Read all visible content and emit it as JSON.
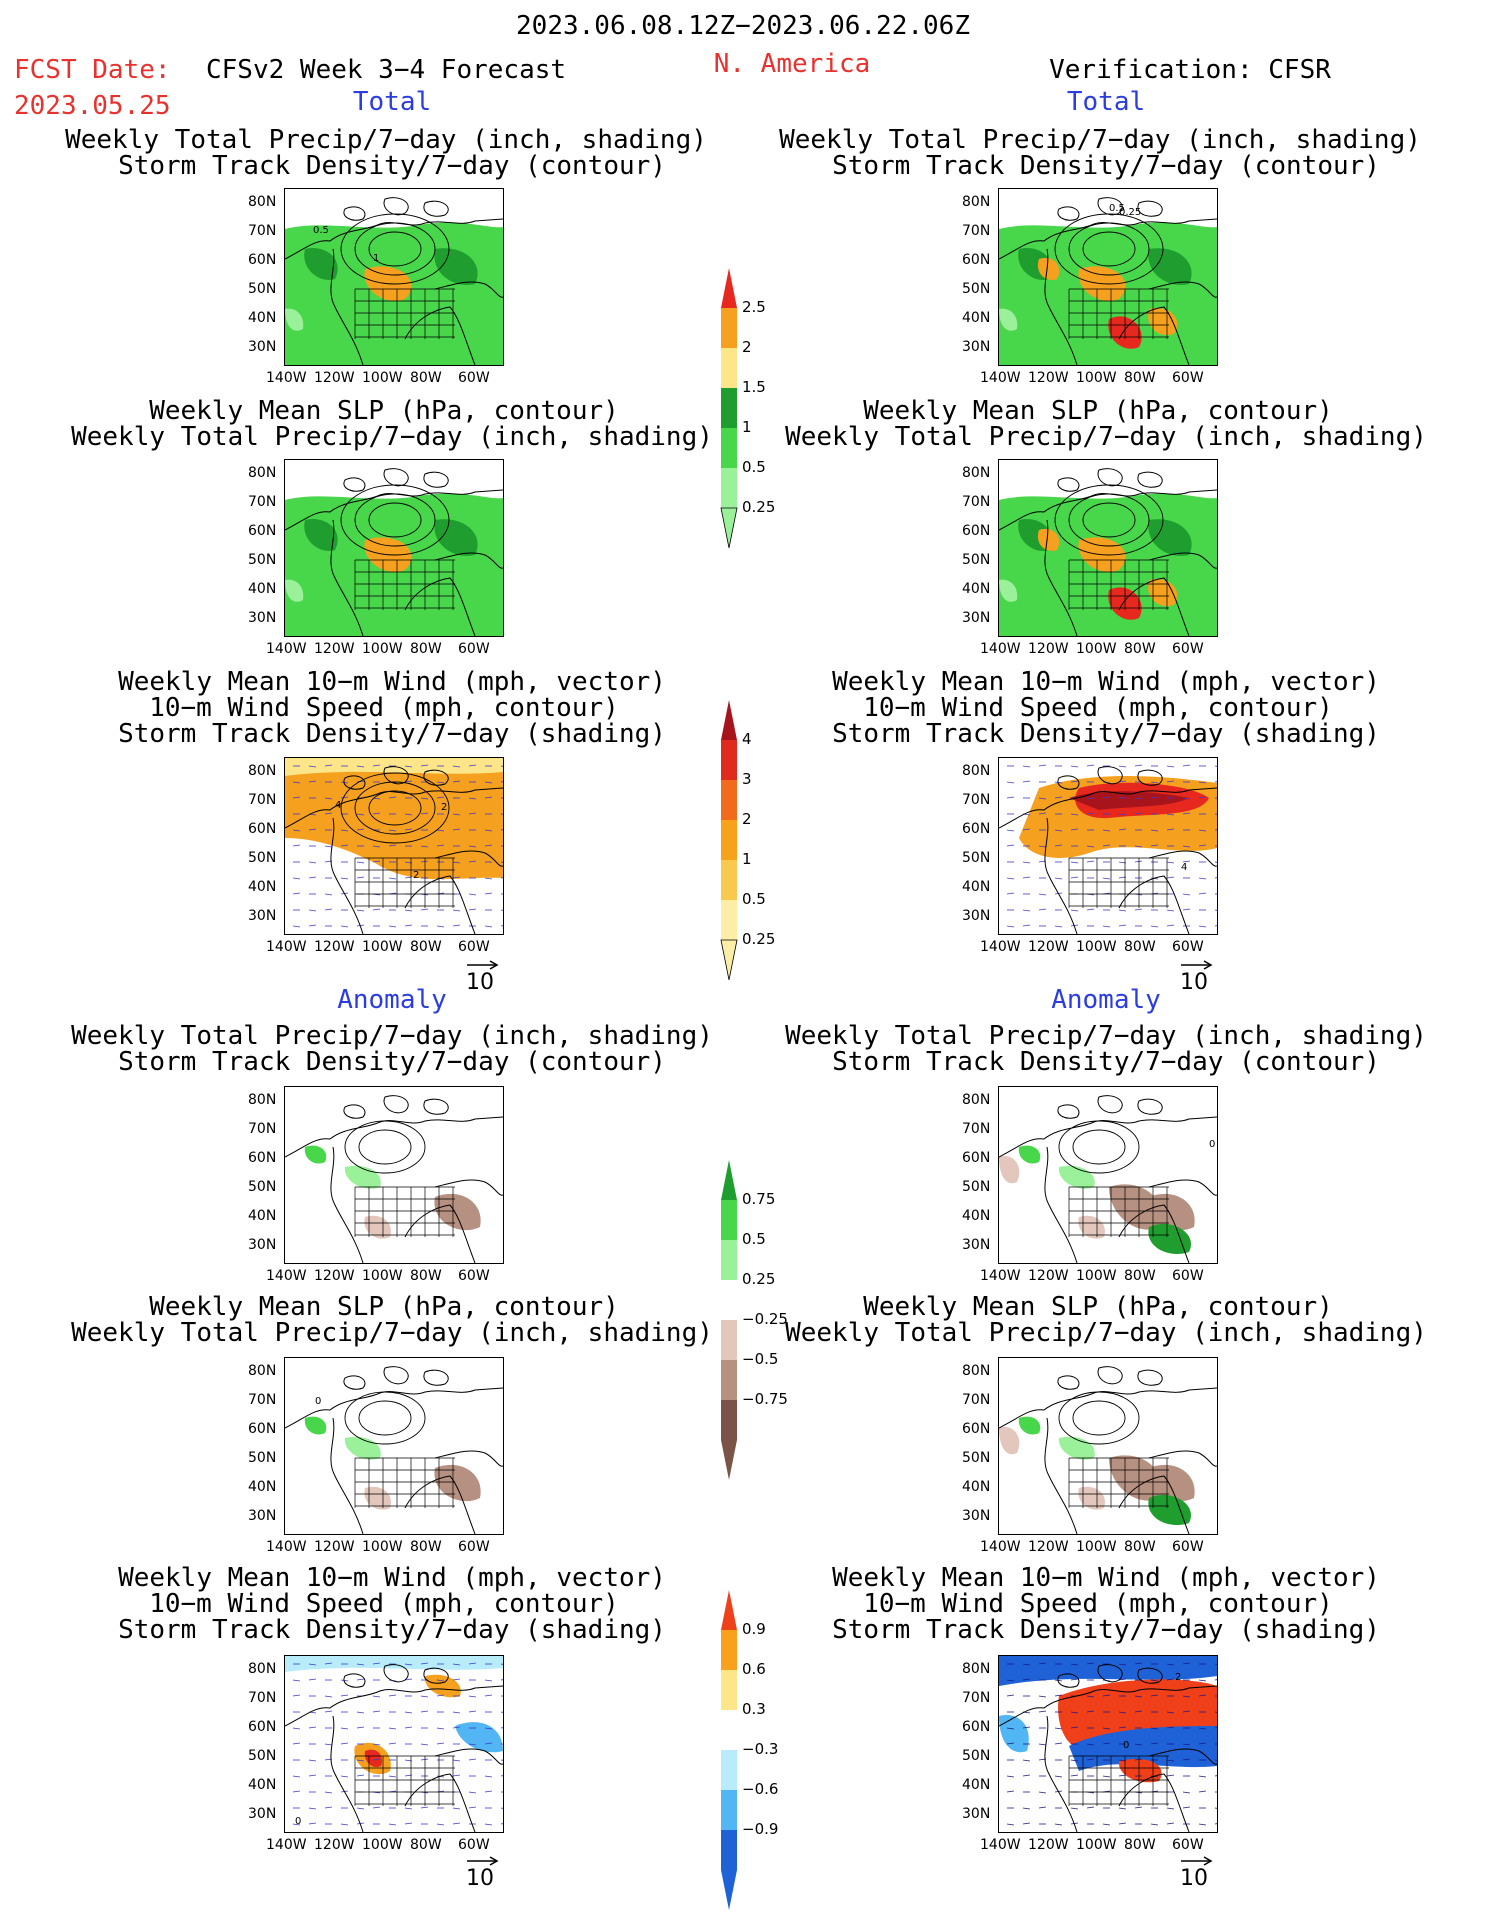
{
  "header": {
    "period": "2023.06.08.12Z−2023.06.22.06Z",
    "fcst_label": "FCST Date:",
    "fcst_date": "2023.05.25",
    "model_title": "CFSv2 Week 3−4 Forecast",
    "region": "N. America",
    "verification": "Verification: CFSR"
  },
  "sections": {
    "total": "Total",
    "anomaly": "Anomaly"
  },
  "titles": {
    "precip_storm": [
      "Weekly Total Precip/7−day (inch, shading)",
      "Storm Track Density/7−day (contour)"
    ],
    "slp_precip": [
      "Weekly Mean SLP (hPa, contour)",
      "Weekly Total Precip/7−day (inch, shading)"
    ],
    "wind_storm": [
      "Weekly Mean 10−m Wind (mph, vector)",
      "10−m Wind Speed (mph, contour)",
      "Storm Track Density/7−day (shading)"
    ]
  },
  "axes": {
    "lat_ticks": [
      "80N",
      "70N",
      "60N",
      "50N",
      "40N",
      "30N"
    ],
    "lon_ticks": [
      "140W",
      "120W",
      "100W",
      "80W",
      "60W"
    ]
  },
  "vector_ref": "10",
  "colorbars": {
    "precip_total": {
      "labels": [
        "2.5",
        "2",
        "1.5",
        "1",
        "0.5",
        "0.25"
      ],
      "colors": [
        "#e6281e",
        "#f5a01e",
        "#fde68a",
        "#1f9e2f",
        "#48d64b",
        "#9bf09a"
      ]
    },
    "storm_total": {
      "labels": [
        "4",
        "3",
        "2",
        "1",
        "0.5",
        "0.25"
      ],
      "colors": [
        "#a8141c",
        "#e02a1e",
        "#f26b1d",
        "#f6a21b",
        "#f9c94e",
        "#fdeea7"
      ]
    },
    "precip_anom": {
      "labels": [
        "0.75",
        "0.5",
        "0.25",
        "−0.25",
        "−0.5",
        "−0.75"
      ],
      "colors": [
        "#1f9e2f",
        "#48d64b",
        "#9bf09a",
        "#ffffff",
        "#e3c7bc",
        "#b69080",
        "#7a5446"
      ]
    },
    "storm_anom": {
      "labels": [
        "0.9",
        "0.6",
        "0.3",
        "−0.3",
        "−0.6",
        "−0.9"
      ],
      "colors": [
        "#f0401a",
        "#f9a01c",
        "#fde68a",
        "#ffffff",
        "#b8ecfb",
        "#52b6f4",
        "#1f62d8"
      ]
    }
  },
  "map_annotations": {
    "p1_a": "0.5",
    "p1_b": "1",
    "p2_a": "0.25",
    "p2_b": "0.5",
    "w1_a": "4",
    "w1_b": "2",
    "w1_c": "2",
    "w2_a": "4",
    "a1_a": "0",
    "a2_a": "0",
    "a3_a": "0",
    "a4_a": "0",
    "a4_b": "2"
  },
  "colors": {
    "green": "#48d64b",
    "dark_green": "#1f9e2f",
    "light_green": "#9bf09a",
    "orange": "#f5a01e",
    "red": "#e6281e",
    "brown": "#b69080",
    "blue": "#1f62d8"
  }
}
